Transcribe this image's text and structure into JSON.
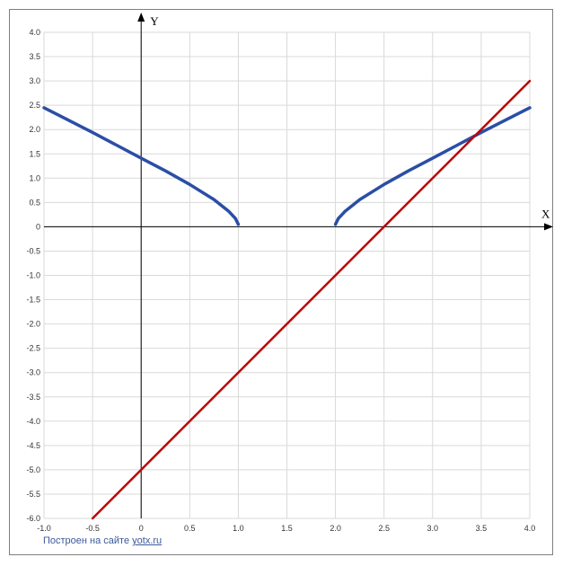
{
  "chart_data": {
    "type": "line",
    "x_axis": {
      "label": "X",
      "range": [
        -1.0,
        4.0
      ],
      "step": 0.5,
      "ticks": [
        "-1.0",
        "-0.5",
        "0",
        "0.5",
        "1.0",
        "1.5",
        "2.0",
        "2.5",
        "3.0",
        "3.5",
        "4.0"
      ]
    },
    "y_axis": {
      "label": "Y",
      "range": [
        -6.0,
        4.0
      ],
      "step": 0.5,
      "ticks": [
        "-6.0",
        "-5.5",
        "-5.0",
        "-4.5",
        "-4.0",
        "-3.5",
        "-3.0",
        "-2.5",
        "-2.0",
        "-1.5",
        "-1.0",
        "-0.5",
        "0",
        "0.5",
        "1.0",
        "1.5",
        "2.0",
        "2.5",
        "3.0",
        "3.5",
        "4.0"
      ]
    },
    "grid": true,
    "series": [
      {
        "color": "#2b4ea5",
        "points": [
          [
            -1.0,
            2.45
          ],
          [
            -0.5,
            1.94
          ],
          [
            0.0,
            1.41
          ],
          [
            0.25,
            1.15
          ],
          [
            0.5,
            0.87
          ],
          [
            0.75,
            0.56
          ],
          [
            0.9,
            0.32
          ],
          [
            0.97,
            0.17
          ],
          [
            1.0,
            0.05
          ]
        ]
      },
      {
        "color": "#2b4ea5",
        "points": [
          [
            2.0,
            0.05
          ],
          [
            2.03,
            0.17
          ],
          [
            2.1,
            0.32
          ],
          [
            2.25,
            0.56
          ],
          [
            2.5,
            0.87
          ],
          [
            2.75,
            1.15
          ],
          [
            3.0,
            1.41
          ],
          [
            3.5,
            1.94
          ],
          [
            4.0,
            2.45
          ]
        ]
      },
      {
        "color": "#c00000",
        "points": [
          [
            -0.5,
            -6.0
          ],
          [
            4.0,
            3.0
          ]
        ]
      }
    ]
  },
  "footer": {
    "text": "Построен на сайте ",
    "link": "yotx.ru"
  }
}
